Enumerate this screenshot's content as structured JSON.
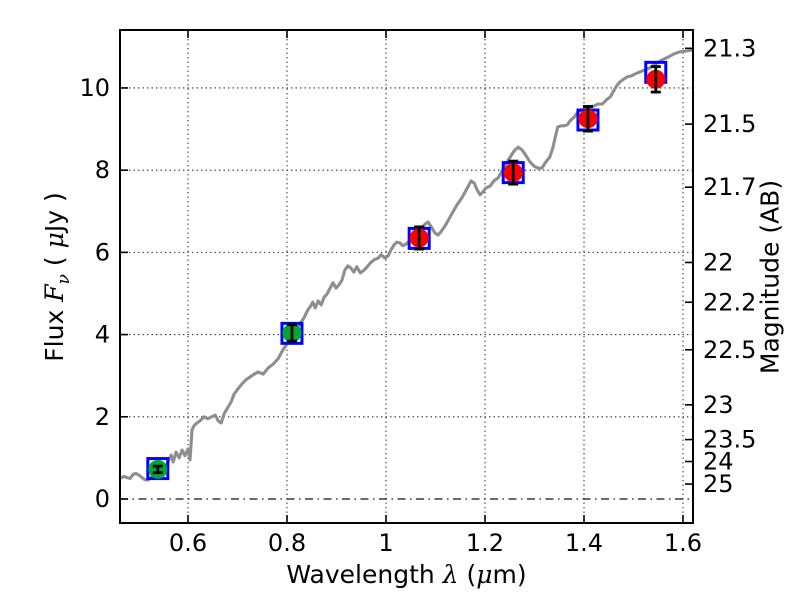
{
  "chart_data": {
    "type": "line",
    "title": "",
    "xlabel_parts": [
      "Wavelength ",
      "λ",
      " (",
      "μ",
      "m)"
    ],
    "ylabel_left_parts": [
      "Flux ",
      "F",
      "ν",
      " ( ",
      "μ",
      "Jy )"
    ],
    "ylabel_right": "Magnitude (AB)",
    "xlim": [
      0.4626,
      1.6202
    ],
    "ylim": [
      -0.584,
      11.41
    ],
    "mag_zeropoint": 23.9,
    "grid": {
      "on": true,
      "style": "dotted",
      "color": "#2a2a2a"
    },
    "zero_line": {
      "value": 0,
      "style": "dash-dot",
      "color": "#111111"
    },
    "x_ticks": [
      {
        "value": 0.6,
        "label": "0.6"
      },
      {
        "value": 0.8,
        "label": "0.8"
      },
      {
        "value": 1.0,
        "label": "1"
      },
      {
        "value": 1.2,
        "label": "1.2"
      },
      {
        "value": 1.4,
        "label": "1.4"
      },
      {
        "value": 1.6,
        "label": "1.6"
      }
    ],
    "y_ticks_flux": [
      {
        "value": 0,
        "label": "0"
      },
      {
        "value": 2,
        "label": "2"
      },
      {
        "value": 4,
        "label": "4"
      },
      {
        "value": 6,
        "label": "6"
      },
      {
        "value": 8,
        "label": "8"
      },
      {
        "value": 10,
        "label": "10"
      }
    ],
    "y_ticks_mag": [
      {
        "value": 21.3,
        "label": "21.3"
      },
      {
        "value": 21.5,
        "label": "21.5"
      },
      {
        "value": 21.7,
        "label": "21.7"
      },
      {
        "value": 22.0,
        "label": "22"
      },
      {
        "value": 22.2,
        "label": "22.2"
      },
      {
        "value": 22.5,
        "label": "22.5"
      },
      {
        "value": 23.0,
        "label": "23"
      },
      {
        "value": 23.5,
        "label": "23.5"
      },
      {
        "value": 24.0,
        "label": "24"
      },
      {
        "value": 25.0,
        "label": "25"
      }
    ],
    "colors": {
      "spectrum": "#8e8e8e",
      "photometry_red": "#ff0000",
      "photometry_green": "#00a832",
      "model_square": "#0000ff",
      "errorbar": "#000000",
      "frame": "#000000"
    },
    "photometry_points": [
      {
        "wavelength": 0.539,
        "flux": 0.72,
        "err": 0.08,
        "color": "green",
        "model_flux": 0.74
      },
      {
        "wavelength": 0.81,
        "flux": 4.04,
        "err": 0.2,
        "color": "green",
        "model_flux": 4.03
      },
      {
        "wavelength": 1.067,
        "flux": 6.35,
        "err": 0.27,
        "color": "red",
        "model_flux": 6.34
      },
      {
        "wavelength": 1.257,
        "flux": 7.94,
        "err": 0.28,
        "color": "red",
        "model_flux": 7.94
      },
      {
        "wavelength": 1.408,
        "flux": 9.25,
        "err": 0.3,
        "color": "red",
        "model_flux": 9.22
      },
      {
        "wavelength": 1.545,
        "flux": 10.21,
        "err": 0.31,
        "color": "red",
        "model_flux": 10.38
      }
    ],
    "spectrum": [
      [
        0.463,
        0.51
      ],
      [
        0.471,
        0.55
      ],
      [
        0.477,
        0.52
      ],
      [
        0.483,
        0.5
      ],
      [
        0.489,
        0.6
      ],
      [
        0.495,
        0.62
      ],
      [
        0.501,
        0.58
      ],
      [
        0.507,
        0.52
      ],
      [
        0.513,
        0.47
      ],
      [
        0.519,
        0.46
      ],
      [
        0.525,
        0.52
      ],
      [
        0.531,
        0.59
      ],
      [
        0.537,
        0.63
      ],
      [
        0.543,
        0.67
      ],
      [
        0.549,
        0.71
      ],
      [
        0.555,
        0.8
      ],
      [
        0.56,
        0.92
      ],
      [
        0.566,
        1.07
      ],
      [
        0.57,
        0.9
      ],
      [
        0.576,
        1.14
      ],
      [
        0.582,
        1.0
      ],
      [
        0.588,
        1.19
      ],
      [
        0.594,
        1.05
      ],
      [
        0.6,
        1.22
      ],
      [
        0.604,
        0.95
      ],
      [
        0.606,
        1.31
      ],
      [
        0.608,
        1.68
      ],
      [
        0.612,
        1.78
      ],
      [
        0.618,
        1.85
      ],
      [
        0.624,
        1.9
      ],
      [
        0.632,
        2.0
      ],
      [
        0.64,
        1.95
      ],
      [
        0.648,
        2.0
      ],
      [
        0.655,
        2.04
      ],
      [
        0.661,
        1.9
      ],
      [
        0.667,
        1.85
      ],
      [
        0.673,
        2.07
      ],
      [
        0.681,
        2.24
      ],
      [
        0.687,
        2.36
      ],
      [
        0.693,
        2.55
      ],
      [
        0.701,
        2.68
      ],
      [
        0.709,
        2.8
      ],
      [
        0.717,
        2.9
      ],
      [
        0.729,
        3.0
      ],
      [
        0.741,
        3.09
      ],
      [
        0.752,
        3.04
      ],
      [
        0.762,
        3.19
      ],
      [
        0.772,
        3.28
      ],
      [
        0.782,
        3.41
      ],
      [
        0.792,
        3.63
      ],
      [
        0.8,
        3.77
      ],
      [
        0.808,
        3.87
      ],
      [
        0.818,
        4.11
      ],
      [
        0.826,
        4.26
      ],
      [
        0.834,
        4.4
      ],
      [
        0.842,
        4.6
      ],
      [
        0.848,
        4.7
      ],
      [
        0.852,
        4.79
      ],
      [
        0.857,
        4.65
      ],
      [
        0.863,
        4.82
      ],
      [
        0.869,
        4.72
      ],
      [
        0.875,
        4.91
      ],
      [
        0.881,
        4.99
      ],
      [
        0.887,
        5.13
      ],
      [
        0.893,
        5.26
      ],
      [
        0.899,
        5.13
      ],
      [
        0.905,
        5.21
      ],
      [
        0.911,
        5.33
      ],
      [
        0.917,
        5.57
      ],
      [
        0.923,
        5.67
      ],
      [
        0.929,
        5.62
      ],
      [
        0.935,
        5.52
      ],
      [
        0.941,
        5.65
      ],
      [
        0.948,
        5.5
      ],
      [
        0.954,
        5.55
      ],
      [
        0.96,
        5.62
      ],
      [
        0.968,
        5.74
      ],
      [
        0.976,
        5.82
      ],
      [
        0.984,
        5.86
      ],
      [
        0.99,
        5.94
      ],
      [
        0.998,
        5.86
      ],
      [
        1.004,
        5.91
      ],
      [
        1.01,
        6.06
      ],
      [
        1.016,
        6.18
      ],
      [
        1.022,
        6.25
      ],
      [
        1.028,
        6.23
      ],
      [
        1.034,
        6.16
      ],
      [
        1.04,
        6.2
      ],
      [
        1.049,
        6.3
      ],
      [
        1.059,
        6.42
      ],
      [
        1.069,
        6.54
      ],
      [
        1.079,
        6.69
      ],
      [
        1.085,
        6.74
      ],
      [
        1.093,
        6.59
      ],
      [
        1.099,
        6.47
      ],
      [
        1.105,
        6.42
      ],
      [
        1.111,
        6.5
      ],
      [
        1.119,
        6.64
      ],
      [
        1.127,
        6.81
      ],
      [
        1.135,
        6.98
      ],
      [
        1.143,
        7.15
      ],
      [
        1.152,
        7.3
      ],
      [
        1.16,
        7.47
      ],
      [
        1.166,
        7.61
      ],
      [
        1.172,
        7.74
      ],
      [
        1.178,
        7.69
      ],
      [
        1.184,
        7.52
      ],
      [
        1.19,
        7.4
      ],
      [
        1.196,
        7.47
      ],
      [
        1.202,
        7.57
      ],
      [
        1.21,
        7.61
      ],
      [
        1.218,
        7.74
      ],
      [
        1.226,
        7.81
      ],
      [
        1.234,
        7.96
      ],
      [
        1.242,
        8.15
      ],
      [
        1.251,
        8.32
      ],
      [
        1.259,
        8.47
      ],
      [
        1.267,
        8.56
      ],
      [
        1.275,
        8.49
      ],
      [
        1.283,
        8.35
      ],
      [
        1.291,
        8.2
      ],
      [
        1.299,
        8.1
      ],
      [
        1.307,
        8.05
      ],
      [
        1.315,
        8.05
      ],
      [
        1.323,
        8.2
      ],
      [
        1.331,
        8.32
      ],
      [
        1.337,
        8.54
      ],
      [
        1.343,
        8.86
      ],
      [
        1.347,
        9.05
      ],
      [
        1.354,
        9.08
      ],
      [
        1.36,
        9.08
      ],
      [
        1.366,
        9.1
      ],
      [
        1.372,
        9.2
      ],
      [
        1.38,
        9.29
      ],
      [
        1.388,
        9.42
      ],
      [
        1.396,
        9.46
      ],
      [
        1.404,
        9.51
      ],
      [
        1.412,
        9.54
      ],
      [
        1.42,
        9.56
      ],
      [
        1.428,
        9.61
      ],
      [
        1.437,
        9.61
      ],
      [
        1.445,
        9.71
      ],
      [
        1.453,
        9.78
      ],
      [
        1.461,
        9.95
      ],
      [
        1.467,
        10.07
      ],
      [
        1.473,
        10.15
      ],
      [
        1.481,
        10.22
      ],
      [
        1.487,
        10.27
      ],
      [
        1.495,
        10.29
      ],
      [
        1.503,
        10.34
      ],
      [
        1.513,
        10.39
      ],
      [
        1.523,
        10.44
      ],
      [
        1.533,
        10.49
      ],
      [
        1.545,
        10.58
      ],
      [
        1.557,
        10.68
      ],
      [
        1.57,
        10.75
      ],
      [
        1.582,
        10.83
      ],
      [
        1.594,
        10.88
      ],
      [
        1.606,
        10.9
      ],
      [
        1.618,
        10.92
      ]
    ]
  }
}
